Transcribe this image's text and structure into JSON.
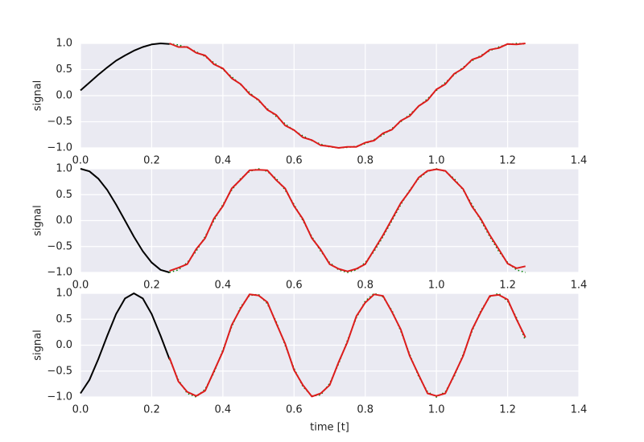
{
  "chart_data": [
    {
      "type": "line",
      "ylabel": "signal",
      "x": [
        0,
        0.025,
        0.05,
        0.075,
        0.1,
        0.125,
        0.15,
        0.175,
        0.2,
        0.225,
        0.25,
        0.275,
        0.3,
        0.325,
        0.35,
        0.375,
        0.4,
        0.425,
        0.45,
        0.475,
        0.5,
        0.525,
        0.55,
        0.575,
        0.6,
        0.625,
        0.65,
        0.675,
        0.7,
        0.725,
        0.75,
        0.775,
        0.8,
        0.825,
        0.85,
        0.875,
        0.9,
        0.925,
        0.95,
        0.975,
        1,
        1.025,
        1.05,
        1.075,
        1.1,
        1.125,
        1.15,
        1.175,
        1.2,
        1.225,
        1.25
      ],
      "xlim": [
        0,
        1.4
      ],
      "ylim": [
        -1,
        1
      ],
      "grid": true,
      "xticks": [
        {
          "value": 0,
          "label": "0.0"
        },
        {
          "value": 0.2,
          "label": "0.2"
        },
        {
          "value": 0.4,
          "label": "0.4"
        },
        {
          "value": 0.6,
          "label": "0.6"
        },
        {
          "value": 0.8,
          "label": "0.8"
        },
        {
          "value": 1,
          "label": "1.0"
        },
        {
          "value": 1.2,
          "label": "1.2"
        },
        {
          "value": 1.4,
          "label": "1.4"
        }
      ],
      "yticks": [
        {
          "value": -1,
          "label": "−1.0"
        },
        {
          "value": -0.5,
          "label": "−0.5"
        },
        {
          "value": 0,
          "label": "0.0"
        },
        {
          "value": 0.5,
          "label": "0.5"
        },
        {
          "value": 1,
          "label": "1.0"
        }
      ],
      "series": [
        {
          "color": "#000000",
          "style": "solid",
          "values": [
            0.1,
            0.25,
            0.4,
            0.54,
            0.67,
            0.77,
            0.86,
            0.93,
            0.98,
            1.0,
            0.99,
            null,
            null,
            null,
            null,
            null,
            null,
            null,
            null,
            null,
            null,
            null,
            null,
            null,
            null,
            null,
            null,
            null,
            null,
            null,
            null,
            null,
            null,
            null,
            null,
            null,
            null,
            null,
            null,
            null,
            null,
            null,
            null,
            null,
            null,
            null,
            null,
            null,
            null,
            null,
            null
          ]
        },
        {
          "color": "#008000",
          "style": "dotted",
          "values": [
            null,
            null,
            null,
            null,
            null,
            null,
            null,
            null,
            null,
            null,
            0.99,
            0.97,
            0.92,
            0.84,
            0.75,
            0.63,
            0.5,
            0.36,
            0.21,
            0.06,
            -0.1,
            -0.25,
            -0.4,
            -0.54,
            -0.67,
            -0.77,
            -0.86,
            -0.93,
            -0.98,
            -1.0,
            -0.99,
            -0.97,
            -0.92,
            -0.84,
            -0.75,
            -0.63,
            -0.5,
            -0.36,
            -0.21,
            -0.06,
            0.1,
            0.25,
            0.4,
            0.54,
            0.67,
            0.77,
            0.86,
            0.93,
            0.98,
            1.0,
            0.99
          ]
        },
        {
          "color": "#dd1c1c",
          "style": "solid",
          "values": [
            null,
            null,
            null,
            null,
            null,
            null,
            null,
            null,
            null,
            null,
            1.0,
            0.93,
            0.93,
            0.82,
            0.77,
            0.6,
            0.52,
            0.33,
            0.22,
            0.03,
            -0.08,
            -0.27,
            -0.37,
            -0.57,
            -0.66,
            -0.8,
            -0.85,
            -0.95,
            -0.97,
            -1.0,
            -0.98,
            -0.98,
            -0.9,
            -0.86,
            -0.72,
            -0.65,
            -0.48,
            -0.39,
            -0.2,
            -0.09,
            0.12,
            0.22,
            0.42,
            0.52,
            0.69,
            0.75,
            0.88,
            0.91,
            0.99,
            0.98,
            1.0
          ]
        }
      ]
    },
    {
      "type": "line",
      "ylabel": "signal",
      "x": [
        0,
        0.025,
        0.05,
        0.075,
        0.1,
        0.125,
        0.15,
        0.175,
        0.2,
        0.225,
        0.25,
        0.275,
        0.3,
        0.325,
        0.35,
        0.375,
        0.4,
        0.425,
        0.45,
        0.475,
        0.5,
        0.525,
        0.55,
        0.575,
        0.6,
        0.625,
        0.65,
        0.675,
        0.7,
        0.725,
        0.75,
        0.775,
        0.8,
        0.825,
        0.85,
        0.875,
        0.9,
        0.925,
        0.95,
        0.975,
        1,
        1.025,
        1.05,
        1.075,
        1.1,
        1.125,
        1.15,
        1.175,
        1.2,
        1.225,
        1.25
      ],
      "xlim": [
        0,
        1.4
      ],
      "ylim": [
        -1,
        1
      ],
      "grid": true,
      "xticks": [
        {
          "value": 0,
          "label": "0.0"
        },
        {
          "value": 0.2,
          "label": "0.2"
        },
        {
          "value": 0.4,
          "label": "0.4"
        },
        {
          "value": 0.6,
          "label": "0.6"
        },
        {
          "value": 0.8,
          "label": "0.8"
        },
        {
          "value": 1,
          "label": "1.0"
        },
        {
          "value": 1.2,
          "label": "1.2"
        },
        {
          "value": 1.4,
          "label": "1.4"
        }
      ],
      "yticks": [
        {
          "value": -1,
          "label": "−1.0"
        },
        {
          "value": -0.5,
          "label": "−0.5"
        },
        {
          "value": 0,
          "label": "0.0"
        },
        {
          "value": 0.5,
          "label": "0.5"
        },
        {
          "value": 1,
          "label": "1.0"
        }
      ],
      "series": [
        {
          "color": "#000000",
          "style": "solid",
          "values": [
            1.0,
            0.95,
            0.81,
            0.59,
            0.31,
            0.0,
            -0.31,
            -0.59,
            -0.81,
            -0.95,
            -1.0,
            null,
            null,
            null,
            null,
            null,
            null,
            null,
            null,
            null,
            null,
            null,
            null,
            null,
            null,
            null,
            null,
            null,
            null,
            null,
            null,
            null,
            null,
            null,
            null,
            null,
            null,
            null,
            null,
            null,
            null,
            null,
            null,
            null,
            null,
            null,
            null,
            null,
            null,
            null,
            null
          ]
        },
        {
          "color": "#008000",
          "style": "dotted",
          "values": [
            null,
            null,
            null,
            null,
            null,
            null,
            null,
            null,
            null,
            null,
            -1.0,
            -0.95,
            -0.81,
            -0.59,
            -0.31,
            0.0,
            0.31,
            0.59,
            0.81,
            0.95,
            1.0,
            0.95,
            0.81,
            0.59,
            0.31,
            0.0,
            -0.31,
            -0.59,
            -0.81,
            -0.95,
            -1.0,
            -0.95,
            -0.81,
            -0.59,
            -0.31,
            0.0,
            0.31,
            0.59,
            0.81,
            0.95,
            1.0,
            0.95,
            0.81,
            0.59,
            0.31,
            0.0,
            -0.31,
            -0.59,
            -0.81,
            -0.95,
            -1.0
          ]
        },
        {
          "color": "#dd1c1c",
          "style": "solid",
          "values": [
            null,
            null,
            null,
            null,
            null,
            null,
            null,
            null,
            null,
            null,
            -0.97,
            -0.91,
            -0.84,
            -0.55,
            -0.34,
            0.04,
            0.28,
            0.62,
            0.79,
            0.97,
            0.98,
            0.97,
            0.78,
            0.62,
            0.28,
            0.03,
            -0.34,
            -0.56,
            -0.84,
            -0.93,
            -0.98,
            -0.93,
            -0.84,
            -0.56,
            -0.28,
            0.03,
            0.34,
            0.57,
            0.83,
            0.96,
            0.99,
            0.96,
            0.78,
            0.61,
            0.27,
            0.03,
            -0.28,
            -0.55,
            -0.83,
            -0.92,
            -0.88
          ]
        }
      ]
    },
    {
      "type": "line",
      "ylabel": "signal",
      "xlabel": "time [t]",
      "x": [
        0,
        0.025,
        0.05,
        0.075,
        0.1,
        0.125,
        0.15,
        0.175,
        0.2,
        0.225,
        0.25,
        0.275,
        0.3,
        0.325,
        0.35,
        0.375,
        0.4,
        0.425,
        0.45,
        0.475,
        0.5,
        0.525,
        0.55,
        0.575,
        0.6,
        0.625,
        0.65,
        0.675,
        0.7,
        0.725,
        0.75,
        0.775,
        0.8,
        0.825,
        0.85,
        0.875,
        0.9,
        0.925,
        0.95,
        0.975,
        1,
        1.025,
        1.05,
        1.075,
        1.1,
        1.125,
        1.15,
        1.175,
        1.2,
        1.225,
        1.25
      ],
      "xlim": [
        0,
        1.4
      ],
      "ylim": [
        -1,
        1
      ],
      "grid": true,
      "xticks": [
        {
          "value": 0,
          "label": "0.0"
        },
        {
          "value": 0.2,
          "label": "0.2"
        },
        {
          "value": 0.4,
          "label": "0.4"
        },
        {
          "value": 0.6,
          "label": "0.6"
        },
        {
          "value": 0.8,
          "label": "0.8"
        },
        {
          "value": 1,
          "label": "1.0"
        },
        {
          "value": 1.2,
          "label": "1.2"
        },
        {
          "value": 1.4,
          "label": "1.4"
        }
      ],
      "yticks": [
        {
          "value": -1,
          "label": "−1.0"
        },
        {
          "value": -0.5,
          "label": "−0.5"
        },
        {
          "value": 0,
          "label": "0.0"
        },
        {
          "value": 0.5,
          "label": "0.5"
        },
        {
          "value": 1,
          "label": "1.0"
        }
      ],
      "series": [
        {
          "color": "#000000",
          "style": "solid",
          "values": [
            -0.93,
            -0.67,
            -0.27,
            0.18,
            0.6,
            0.9,
            1.0,
            0.9,
            0.6,
            0.18,
            -0.27,
            null,
            null,
            null,
            null,
            null,
            null,
            null,
            null,
            null,
            null,
            null,
            null,
            null,
            null,
            null,
            null,
            null,
            null,
            null,
            null,
            null,
            null,
            null,
            null,
            null,
            null,
            null,
            null,
            null,
            null,
            null,
            null,
            null,
            null,
            null,
            null,
            null,
            null,
            null,
            null
          ]
        },
        {
          "color": "#008000",
          "style": "dotted",
          "values": [
            null,
            null,
            null,
            null,
            null,
            null,
            null,
            null,
            null,
            null,
            -0.27,
            -0.67,
            -0.93,
            -1.0,
            -0.85,
            -0.53,
            -0.09,
            0.36,
            0.74,
            0.96,
            0.98,
            0.8,
            0.45,
            0.0,
            -0.45,
            -0.8,
            -0.98,
            -0.96,
            -0.74,
            -0.36,
            0.09,
            0.53,
            0.85,
            1.0,
            0.93,
            0.67,
            0.27,
            -0.18,
            -0.6,
            -0.9,
            -1.0,
            -0.9,
            -0.6,
            -0.18,
            0.27,
            0.67,
            0.93,
            1.0,
            0.85,
            0.53,
            0.09
          ]
        },
        {
          "color": "#dd1c1c",
          "style": "solid",
          "values": [
            null,
            null,
            null,
            null,
            null,
            null,
            null,
            null,
            null,
            null,
            -0.24,
            -0.7,
            -0.9,
            -0.98,
            -0.88,
            -0.5,
            -0.12,
            0.39,
            0.71,
            0.98,
            0.96,
            0.83,
            0.42,
            0.03,
            -0.48,
            -0.77,
            -0.99,
            -0.93,
            -0.77,
            -0.33,
            0.06,
            0.56,
            0.82,
            0.98,
            0.95,
            0.64,
            0.3,
            -0.21,
            -0.57,
            -0.93,
            -0.98,
            -0.93,
            -0.57,
            -0.21,
            0.3,
            0.64,
            0.95,
            0.97,
            0.88,
            0.5,
            0.15
          ]
        }
      ]
    }
  ]
}
